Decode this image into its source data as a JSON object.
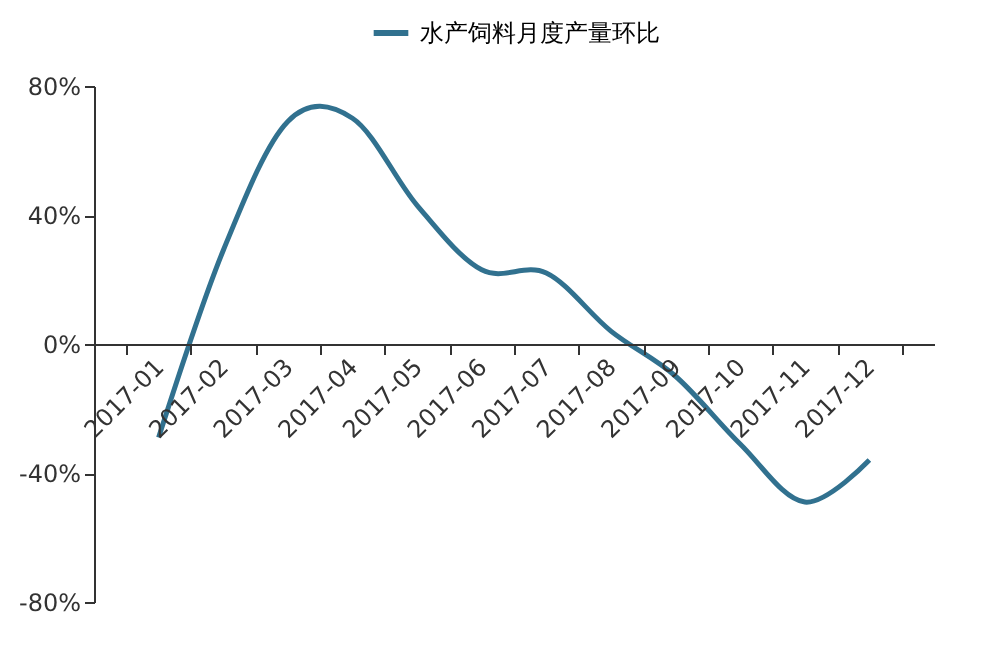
{
  "chart_data": {
    "type": "line",
    "categories": [
      "2017-01",
      "2017-02",
      "2017-03",
      "2017-04",
      "2017-05",
      "2017-06",
      "2017-07",
      "2017-08",
      "2017-09",
      "2017-10",
      "2017-11",
      "2017-12"
    ],
    "series": [
      {
        "name": "水产饲料月度产量环比",
        "color": "#31718f",
        "values": [
          -29,
          29,
          69,
          70,
          43,
          23,
          22,
          4,
          -10,
          -31,
          -49,
          -36
        ]
      }
    ],
    "ylim": [
      -80,
      80
    ],
    "yticks": [
      {
        "value": -80,
        "label": "-80%"
      },
      {
        "value": -40,
        "label": "-40%"
      },
      {
        "value": 0,
        "label": "0%"
      },
      {
        "value": 40,
        "label": "40%"
      },
      {
        "value": 80,
        "label": "80%"
      }
    ],
    "grid": false,
    "legend": "top",
    "marker": "none",
    "line_style": "solid"
  }
}
